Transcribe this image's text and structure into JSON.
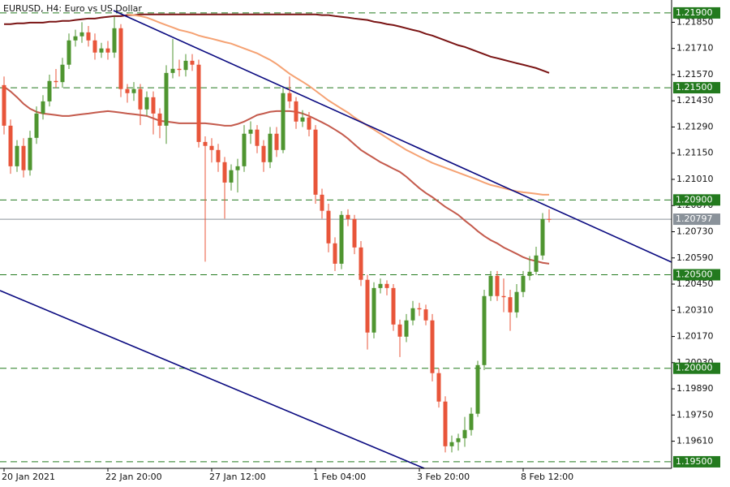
{
  "chart_data": {
    "type": "candlestick",
    "title": "EURUSD, H4:  Euro vs US Dollar",
    "categories": [
      "20 Jan 2021",
      null,
      null,
      null,
      null,
      null,
      null,
      null,
      null,
      null,
      null,
      null,
      null,
      null,
      null,
      null,
      "22 Jan 20:00",
      null,
      null,
      null,
      null,
      null,
      null,
      null,
      null,
      null,
      null,
      null,
      null,
      null,
      null,
      null,
      "27 Jan 12:00",
      null,
      null,
      null,
      null,
      null,
      null,
      null,
      null,
      null,
      null,
      null,
      null,
      null,
      null,
      null,
      "1 Feb 04:00",
      null,
      null,
      null,
      null,
      null,
      null,
      null,
      null,
      null,
      null,
      null,
      null,
      null,
      null,
      null,
      "3 Feb 20:00",
      null,
      null,
      null,
      null,
      null,
      null,
      null,
      null,
      null,
      null,
      null,
      null,
      null,
      null,
      null,
      "8 Feb 12:00",
      null,
      null,
      null,
      null
    ],
    "open": [
      1.21514,
      1.21297,
      1.2108,
      1.21189,
      1.21059,
      1.21232,
      1.21362,
      1.21427,
      1.21536,
      1.2153,
      1.21623,
      1.21753,
      1.21775,
      1.21796,
      1.21753,
      1.21688,
      1.2171,
      1.21688,
      1.21818,
      1.21493,
      1.21471,
      1.21493,
      1.21384,
      1.21449,
      1.21362,
      1.21297,
      1.21579,
      1.21601,
      1.21595,
      1.21644,
      1.21623,
      1.2121,
      1.21189,
      1.21167,
      1.21102,
      1.20993,
      1.21059,
      1.2108,
      1.21254,
      1.21276,
      1.21189,
      1.21102,
      1.21254,
      1.21167,
      1.21471,
      1.21427,
      1.21319,
      1.21341,
      1.21276,
      1.20928,
      1.20842,
      1.20668,
      1.20559,
      1.2082,
      1.20798,
      1.20646,
      1.20473,
      1.20191,
      1.20429,
      1.20451,
      1.20429,
      1.20234,
      1.20169,
      1.20256,
      1.20321,
      1.20315,
      1.20256,
      1.19974,
      1.19822,
      1.19583,
      1.19605,
      1.19626,
      1.1967,
      1.19757,
      1.20017,
      1.20386,
      1.20494,
      1.20386,
      1.2038,
      1.20299,
      1.20408,
      1.20494,
      1.20516,
      1.20603,
      1.20798
    ],
    "high": [
      1.2156,
      1.2133,
      1.2122,
      1.2123,
      1.2127,
      1.214,
      1.2146,
      1.2157,
      1.216,
      1.2166,
      1.2179,
      1.2181,
      1.2185,
      1.2183,
      1.2179,
      1.2174,
      1.2175,
      1.2188,
      1.2184,
      1.2152,
      1.2153,
      1.2152,
      1.2148,
      1.2148,
      1.2139,
      1.2162,
      1.2176,
      1.2165,
      1.2168,
      1.2168,
      1.2165,
      1.2124,
      1.2123,
      1.212,
      1.2113,
      1.2109,
      1.2112,
      1.213,
      1.2132,
      1.213,
      1.2122,
      1.2129,
      1.2129,
      1.215,
      1.2156,
      1.2145,
      1.2138,
      1.2137,
      1.213,
      1.2096,
      1.2088,
      1.207,
      1.2084,
      1.2085,
      1.2082,
      1.2068,
      1.205,
      1.2046,
      1.2048,
      1.2047,
      1.2045,
      1.2026,
      1.2029,
      1.2036,
      1.2035,
      1.2034,
      1.2029,
      1.2,
      1.1985,
      1.1964,
      1.1965,
      1.1974,
      1.1979,
      1.2004,
      1.2042,
      1.2052,
      1.2052,
      1.2048,
      1.2042,
      1.2045,
      1.2052,
      1.206,
      1.2065,
      1.2083,
      1.2085
    ],
    "low": [
      1.2125,
      1.2104,
      1.2105,
      1.2102,
      1.2103,
      1.212,
      1.2133,
      1.214,
      1.215,
      1.215,
      1.216,
      1.2172,
      1.2174,
      1.2172,
      1.2165,
      1.2166,
      1.2165,
      1.2166,
      1.2145,
      1.2142,
      1.2143,
      1.213,
      1.2135,
      1.2125,
      1.2123,
      1.212,
      1.2155,
      1.2156,
      1.2156,
      1.2159,
      1.2118,
      1.2057,
      1.211,
      1.2105,
      1.208,
      1.2095,
      1.2094,
      1.2105,
      1.212,
      1.2115,
      1.2105,
      1.2107,
      1.2113,
      1.2115,
      1.2139,
      1.2128,
      1.2129,
      1.2124,
      1.2088,
      1.208,
      1.2062,
      1.2052,
      1.2053,
      1.2076,
      1.2061,
      1.2044,
      1.201,
      1.2016,
      1.204,
      1.2039,
      1.202,
      1.2006,
      1.2014,
      1.2023,
      1.2028,
      1.2023,
      1.1993,
      1.1979,
      1.1955,
      1.1955,
      1.1956,
      1.1958,
      1.1964,
      1.1974,
      1.1999,
      1.2036,
      1.2036,
      1.203,
      1.202,
      1.2027,
      1.2038,
      1.2047,
      1.205,
      1.2058,
      1.2078
    ],
    "close": [
      1.21297,
      1.2108,
      1.21189,
      1.21059,
      1.21232,
      1.21362,
      1.21427,
      1.21536,
      1.2153,
      1.21623,
      1.21753,
      1.21775,
      1.21796,
      1.21753,
      1.21688,
      1.2171,
      1.21688,
      1.21818,
      1.21493,
      1.21471,
      1.21493,
      1.21384,
      1.21449,
      1.21362,
      1.21297,
      1.21579,
      1.21601,
      1.21595,
      1.21644,
      1.21623,
      1.2121,
      1.21189,
      1.21167,
      1.21102,
      1.20993,
      1.21059,
      1.2108,
      1.21254,
      1.21276,
      1.21189,
      1.21102,
      1.21254,
      1.21167,
      1.21471,
      1.21427,
      1.21319,
      1.21341,
      1.21276,
      1.20928,
      1.20842,
      1.20668,
      1.20559,
      1.2082,
      1.20798,
      1.20646,
      1.20473,
      1.20191,
      1.20429,
      1.20451,
      1.20429,
      1.20234,
      1.20169,
      1.20256,
      1.20321,
      1.20315,
      1.20256,
      1.19974,
      1.19822,
      1.19583,
      1.19605,
      1.19626,
      1.1967,
      1.19757,
      1.20017,
      1.20386,
      1.20494,
      1.20386,
      1.2038,
      1.20299,
      1.20408,
      1.20494,
      1.20516,
      1.20603,
      1.20798,
      1.20797
    ],
    "up_color": "#4f9530",
    "down_color": "#e8553a",
    "moving_averages": [
      {
        "color": "#7a1414",
        "values": [
          1.2184,
          1.2184,
          1.21844,
          1.21844,
          1.21848,
          1.21848,
          1.21848,
          1.21853,
          1.21853,
          1.21857,
          1.21857,
          1.21862,
          1.21866,
          1.2187,
          1.2187,
          1.21875,
          1.21879,
          1.21883,
          1.21883,
          1.21888,
          1.21888,
          1.21892,
          1.21892,
          1.21892,
          1.21892,
          1.21892,
          1.21892,
          1.21892,
          1.21892,
          1.21892,
          1.21892,
          1.21892,
          1.21892,
          1.21892,
          1.21892,
          1.21892,
          1.21892,
          1.21892,
          1.21892,
          1.21892,
          1.21892,
          1.21892,
          1.21892,
          1.21892,
          1.21892,
          1.21892,
          1.21892,
          1.21892,
          1.21892,
          1.21888,
          1.21888,
          1.21883,
          1.21879,
          1.21875,
          1.2187,
          1.21866,
          1.21862,
          1.21853,
          1.21848,
          1.2184,
          1.21835,
          1.21827,
          1.21818,
          1.21809,
          1.21801,
          1.21788,
          1.21779,
          1.21766,
          1.21753,
          1.2174,
          1.21727,
          1.21718,
          1.21705,
          1.21692,
          1.21679,
          1.21666,
          1.21658,
          1.21649,
          1.2164,
          1.21631,
          1.21623,
          1.21614,
          1.21605,
          1.21592,
          1.21579
        ]
      },
      {
        "color": "#f5a273",
        "values": [
          null,
          null,
          null,
          null,
          null,
          null,
          null,
          null,
          null,
          null,
          null,
          null,
          null,
          null,
          null,
          null,
          null,
          null,
          null,
          1.21892,
          1.21888,
          1.21883,
          1.21875,
          1.21862,
          1.21848,
          1.21835,
          1.21822,
          1.21809,
          1.21801,
          1.21792,
          1.21779,
          1.2177,
          1.21762,
          1.21753,
          1.21744,
          1.21736,
          1.21723,
          1.2171,
          1.21697,
          1.21684,
          1.21666,
          1.21649,
          1.21627,
          1.21601,
          1.21575,
          1.21553,
          1.21532,
          1.2151,
          1.21484,
          1.21458,
          1.21432,
          1.2141,
          1.21388,
          1.21367,
          1.21341,
          1.21319,
          1.21297,
          1.21276,
          1.21254,
          1.21232,
          1.2121,
          1.21189,
          1.21167,
          1.2115,
          1.21132,
          1.21115,
          1.21098,
          1.21085,
          1.21072,
          1.21059,
          1.21046,
          1.21033,
          1.2102,
          1.21007,
          1.20993,
          1.2098,
          1.20972,
          1.20963,
          1.20954,
          1.20946,
          1.20941,
          1.20937,
          1.20933,
          1.20928,
          1.20928
        ]
      },
      {
        "color": "#c45a4c",
        "values": [
          1.21506,
          1.2148,
          1.21449,
          1.21414,
          1.21388,
          1.21371,
          1.21362,
          1.21358,
          1.21354,
          1.21349,
          1.21349,
          1.21354,
          1.21358,
          1.21362,
          1.21367,
          1.21371,
          1.21375,
          1.21371,
          1.21367,
          1.21362,
          1.21358,
          1.21354,
          1.21349,
          1.21336,
          1.21323,
          1.21319,
          1.21315,
          1.2131,
          1.2131,
          1.2131,
          1.2131,
          1.2131,
          1.21306,
          1.21302,
          1.21297,
          1.21297,
          1.21306,
          1.21319,
          1.21336,
          1.21354,
          1.21362,
          1.21371,
          1.21375,
          1.21375,
          1.21375,
          1.21371,
          1.21362,
          1.21349,
          1.21332,
          1.21315,
          1.21297,
          1.21276,
          1.21254,
          1.21228,
          1.21197,
          1.21167,
          1.21145,
          1.21124,
          1.21102,
          1.21085,
          1.21067,
          1.2105,
          1.21024,
          1.20993,
          1.20963,
          1.20937,
          1.20915,
          1.20889,
          1.20863,
          1.20842,
          1.2082,
          1.2079,
          1.20763,
          1.20733,
          1.20707,
          1.20685,
          1.20668,
          1.20646,
          1.20629,
          1.20612,
          1.20594,
          1.20581,
          1.20573,
          1.20564,
          1.20559
        ]
      }
    ],
    "levels": [
      {
        "value": 1.219,
        "label": "1.21900"
      },
      {
        "value": 1.215,
        "label": "1.21500"
      },
      {
        "value": 1.209,
        "label": "1.20900"
      },
      {
        "value": 1.205,
        "label": "1.20500"
      },
      {
        "value": 1.2,
        "label": "1.20000"
      },
      {
        "value": 1.195,
        "label": "1.19500"
      }
    ],
    "level_color": "#237a1e",
    "current_price": {
      "value": 1.20797,
      "label": "1.20797"
    },
    "ylim": [
      1.19465,
      1.21969
    ],
    "yticks": [
      {
        "value": 1.2185,
        "label": "1.21850"
      },
      {
        "value": 1.2171,
        "label": "1.21710"
      },
      {
        "value": 1.2157,
        "label": "1.21570"
      },
      {
        "value": 1.2143,
        "label": "1.21430"
      },
      {
        "value": 1.2129,
        "label": "1.21290"
      },
      {
        "value": 1.2115,
        "label": "1.21150"
      },
      {
        "value": 1.2101,
        "label": "1.21010"
      },
      {
        "value": 1.2087,
        "label": "1.20870"
      },
      {
        "value": 1.2073,
        "label": "1.20730"
      },
      {
        "value": 1.2059,
        "label": "1.20590"
      },
      {
        "value": 1.2045,
        "label": "1.20450"
      },
      {
        "value": 1.2031,
        "label": "1.20310"
      },
      {
        "value": 1.2017,
        "label": "1.20170"
      },
      {
        "value": 1.2003,
        "label": "1.20030"
      },
      {
        "value": 1.1989,
        "label": "1.19890"
      },
      {
        "value": 1.1975,
        "label": "1.19750"
      },
      {
        "value": 1.1961,
        "label": "1.19610"
      }
    ]
  }
}
